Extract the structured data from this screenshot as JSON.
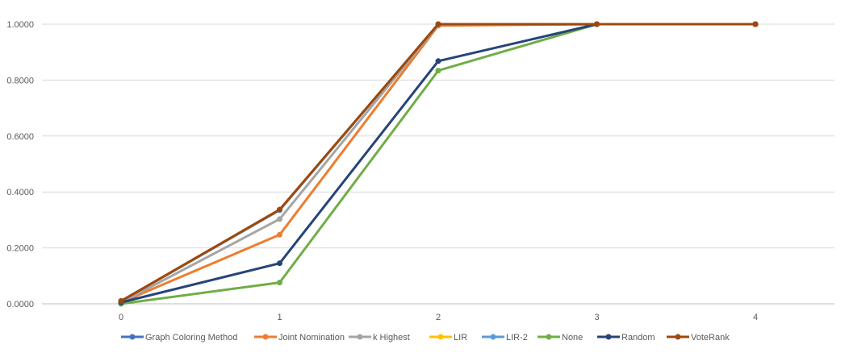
{
  "chart_data": {
    "type": "line",
    "title": "",
    "xlabel": "",
    "ylabel": "",
    "categories": [
      "0",
      "1",
      "2",
      "3",
      "4"
    ],
    "ylim": [
      0,
      1
    ],
    "y_ticks": [
      "0.0000",
      "0.2000",
      "0.4000",
      "0.6000",
      "0.8000",
      "1.0000"
    ],
    "grid": "horizontal",
    "legend_position": "bottom",
    "series": [
      {
        "name": "Graph Coloring Method",
        "color": "#4472C4",
        "values": [
          0.01,
          0.335,
          1.0,
          1.0,
          1.0
        ]
      },
      {
        "name": "Joint Nomination",
        "color": "#ED7D31",
        "values": [
          0.005,
          0.247,
          0.995,
          1.0,
          1.0
        ]
      },
      {
        "name": "k Highest",
        "color": "#A5A5A5",
        "values": [
          0.005,
          0.303,
          0.998,
          1.0,
          1.0
        ]
      },
      {
        "name": "LIR",
        "color": "#FFC000",
        "values": [
          0.01,
          0.335,
          1.0,
          1.0,
          1.0
        ]
      },
      {
        "name": "LIR-2",
        "color": "#5B9BD5",
        "values": [
          0.01,
          0.335,
          1.0,
          1.0,
          1.0
        ]
      },
      {
        "name": "None",
        "color": "#70AD47",
        "values": [
          0.0,
          0.076,
          0.834,
          1.0,
          1.0
        ]
      },
      {
        "name": "Random",
        "color": "#264478",
        "values": [
          0.005,
          0.145,
          0.868,
          1.0,
          1.0
        ]
      },
      {
        "name": "VoteRank",
        "color": "#9E480E",
        "values": [
          0.01,
          0.337,
          1.0,
          1.0,
          1.0
        ]
      }
    ]
  }
}
